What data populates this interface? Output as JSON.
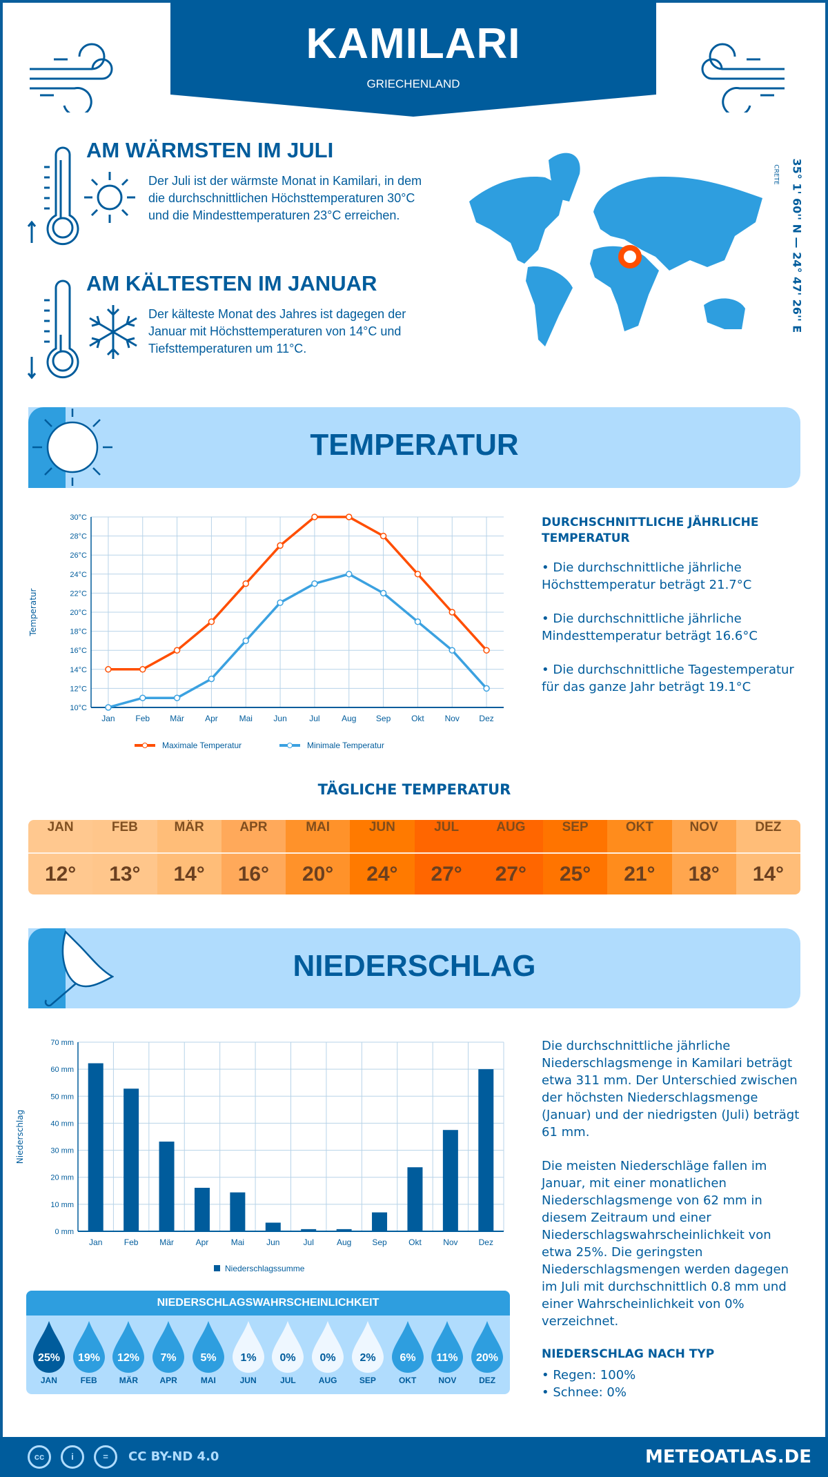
{
  "header": {
    "title": "KAMILARI",
    "country": "GRIECHENLAND"
  },
  "warmest": {
    "heading": "AM WÄRMSTEN IM JULI",
    "text": "Der Juli ist der wärmste Monat in Kamilari, in dem die durchschnittlichen Höchsttemperaturen 30°C und die Mindesttemperaturen 23°C erreichen."
  },
  "coldest": {
    "heading": "AM KÄLTESTEN IM JANUAR",
    "text": "Der kälteste Monat des Jahres ist dagegen der Januar mit Höchsttemperaturen von 14°C und Tiefsttemperaturen um 11°C."
  },
  "location": {
    "coordinates": "35° 1' 60'' N — 24° 47' 26'' E",
    "region": "CRETE"
  },
  "temperature": {
    "banner": "TEMPERATUR",
    "side_heading": "DURCHSCHNITTLICHE JÄHRLICHE TEMPERATUR",
    "bullets": [
      "• Die durchschnittliche jährliche Höchsttemperatur beträgt 21.7°C",
      "• Die durchschnittliche jährliche Mindesttemperatur beträgt 16.6°C",
      "• Die durchschnittliche Tagestemperatur für das ganze Jahr beträgt 19.1°C"
    ],
    "daily_heading": "TÄGLICHE TEMPERATUR",
    "daily": [
      {
        "month": "JAN",
        "value": "12°",
        "color": "#ffc88f"
      },
      {
        "month": "FEB",
        "value": "13°",
        "color": "#ffc68b"
      },
      {
        "month": "MÄR",
        "value": "14°",
        "color": "#ffbd78"
      },
      {
        "month": "APR",
        "value": "16°",
        "color": "#ffa95a"
      },
      {
        "month": "MAI",
        "value": "20°",
        "color": "#ff922a"
      },
      {
        "month": "JUN",
        "value": "24°",
        "color": "#ff7a00"
      },
      {
        "month": "JUL",
        "value": "27°",
        "color": "#ff6600"
      },
      {
        "month": "AUG",
        "value": "27°",
        "color": "#ff6600"
      },
      {
        "month": "SEP",
        "value": "25°",
        "color": "#ff7400"
      },
      {
        "month": "OKT",
        "value": "21°",
        "color": "#ff8c1c"
      },
      {
        "month": "NOV",
        "value": "18°",
        "color": "#ffa64e"
      },
      {
        "month": "DEZ",
        "value": "14°",
        "color": "#ffbd78"
      }
    ]
  },
  "precipitation": {
    "banner": "NIEDERSCHLAG",
    "text1": "Die durchschnittliche jährliche Niederschlagsmenge in Kamilari beträgt etwa 311 mm. Der Unterschied zwischen der höchsten Niederschlagsmenge (Januar) und der niedrigsten (Juli) beträgt 61 mm.",
    "text2": "Die meisten Niederschläge fallen im Januar, mit einer monatlichen Niederschlagsmenge von 62 mm in diesem Zeitraum und einer Niederschlagswahrscheinlichkeit von etwa 25%. Die geringsten Niederschlagsmengen werden dagegen im Juli mit durchschnittlich 0.8 mm und einer Wahrscheinlichkeit von 0% verzeichnet.",
    "type_heading": "NIEDERSCHLAG NACH TYP",
    "types": [
      "• Regen: 100%",
      "• Schnee: 0%"
    ],
    "prob_heading": "NIEDERSCHLAGSWAHRSCHEINLICHKEIT",
    "prob": [
      {
        "month": "JAN",
        "value": "25%",
        "color": "#005c9c"
      },
      {
        "month": "FEB",
        "value": "19%",
        "color": "#2e9edf"
      },
      {
        "month": "MÄR",
        "value": "12%",
        "color": "#2e9edf"
      },
      {
        "month": "APR",
        "value": "7%",
        "color": "#2e9edf"
      },
      {
        "month": "MAI",
        "value": "5%",
        "color": "#2e9edf"
      },
      {
        "month": "JUN",
        "value": "1%",
        "color": "#eef7ff"
      },
      {
        "month": "JUL",
        "value": "0%",
        "color": "#eef7ff"
      },
      {
        "month": "AUG",
        "value": "0%",
        "color": "#eef7ff"
      },
      {
        "month": "SEP",
        "value": "2%",
        "color": "#eef7ff"
      },
      {
        "month": "OKT",
        "value": "6%",
        "color": "#2e9edf"
      },
      {
        "month": "NOV",
        "value": "11%",
        "color": "#2e9edf"
      },
      {
        "month": "DEZ",
        "value": "20%",
        "color": "#2e9edf"
      }
    ]
  },
  "footer": {
    "license": "CC BY-ND 4.0",
    "site": "METEOATLAS.DE"
  },
  "colors": {
    "brand": "#005c9c",
    "accent": "#2e9edf",
    "light": "#b0dcfd",
    "max": "#ff4e00"
  },
  "chart_data": [
    {
      "type": "line",
      "categories": [
        "Jan",
        "Feb",
        "Mär",
        "Apr",
        "Mai",
        "Jun",
        "Jul",
        "Aug",
        "Sep",
        "Okt",
        "Nov",
        "Dez"
      ],
      "series": [
        {
          "name": "Maximale Temperatur",
          "values": [
            14,
            14,
            16,
            19,
            23,
            27,
            30,
            30,
            28,
            24,
            20,
            16
          ],
          "color": "#ff4e00"
        },
        {
          "name": "Minimale Temperatur",
          "values": [
            10,
            11,
            11,
            13,
            17,
            21,
            23,
            24,
            22,
            19,
            16,
            12
          ],
          "color": "#3ba1e0"
        }
      ],
      "ylabel": "Temperatur",
      "ylim": [
        10,
        30
      ],
      "yticks": [
        "10°C",
        "12°C",
        "14°C",
        "16°C",
        "18°C",
        "20°C",
        "22°C",
        "24°C",
        "26°C",
        "28°C",
        "30°C"
      ],
      "grid": true,
      "legend": "bottom"
    },
    {
      "type": "bar",
      "categories": [
        "Jan",
        "Feb",
        "Mär",
        "Apr",
        "Mai",
        "Jun",
        "Jul",
        "Aug",
        "Sep",
        "Okt",
        "Nov",
        "Dez"
      ],
      "series": [
        {
          "name": "Niederschlagssumme",
          "values": [
            62.2,
            52.8,
            33.2,
            16.1,
            14.4,
            3.2,
            0.8,
            0.8,
            7,
            23.7,
            37.5,
            60
          ],
          "color": "#005c9c"
        }
      ],
      "ylabel": "Niederschlag",
      "ylim": [
        0,
        70
      ],
      "yticks": [
        "0 mm",
        "10 mm",
        "20 mm",
        "30 mm",
        "40 mm",
        "50 mm",
        "60 mm",
        "70 mm"
      ],
      "grid": true,
      "legend": "bottom"
    }
  ]
}
